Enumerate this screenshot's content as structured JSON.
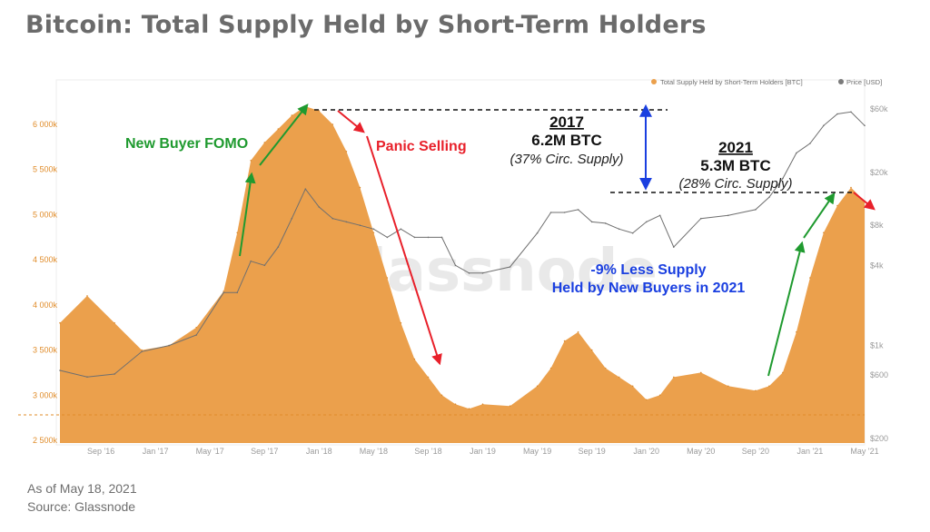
{
  "title": "Bitcoin: Total Supply Held by Short-Term Holders",
  "footer": {
    "date": "As of May 18, 2021",
    "source": "Source: Glassnode"
  },
  "watermark": "glassnode",
  "colors": {
    "supply": "#eba04c",
    "price": "#6f6f6f",
    "green": "#1f9a2f",
    "red": "#e8202a",
    "blue": "#1a3fe0"
  },
  "annotations": {
    "fomo": "New Buyer FOMO",
    "panic": "Panic Selling",
    "y2017": "2017",
    "y2017_btc": "6.2M BTC",
    "y2017_circ": "(37% Circ. Supply)",
    "y2021": "2021",
    "y2021_btc": "5.3M BTC",
    "y2021_circ": "(28% Circ. Supply)",
    "less_1": "-9% Less Supply",
    "less_2": "Held by New Buyers in 2021"
  },
  "chart_data": {
    "type": "area",
    "legend": [
      "Total Supply Held by Short-Term Holders [BTC]",
      "Price [USD]"
    ],
    "legend_position": "top-right",
    "x_ticks": [
      "Sep '16",
      "Jan '17",
      "May '17",
      "Sep '17",
      "Jan '18",
      "May '18",
      "Sep '18",
      "Jan '19",
      "May '19",
      "Sep '19",
      "Jan '20",
      "May '20",
      "Sep '20",
      "Jan '21",
      "May '21"
    ],
    "y_left_ticks": [
      "6 000k",
      "5 500k",
      "5 000k",
      "4 500k",
      "4 000k",
      "3 500k",
      "3 000k",
      "2 500k"
    ],
    "y_left_range": [
      2500000,
      6200000
    ],
    "y_right_ticks": [
      "$60k",
      "$20k",
      "$8k",
      "$4k",
      "$1k",
      "$600",
      "$200"
    ],
    "y_right_scale": "log",
    "series": [
      {
        "name": "Total Supply Held by Short-Term Holders [BTC]",
        "x": [
          "2016-06",
          "2016-08",
          "2016-10",
          "2016-12",
          "2017-02",
          "2017-04",
          "2017-06",
          "2017-07",
          "2017-08",
          "2017-09",
          "2017-10",
          "2017-11",
          "2017-12",
          "2018-01",
          "2018-02",
          "2018-03",
          "2018-04",
          "2018-05",
          "2018-06",
          "2018-07",
          "2018-08",
          "2018-09",
          "2018-10",
          "2018-11",
          "2018-12",
          "2019-01",
          "2019-03",
          "2019-05",
          "2019-06",
          "2019-07",
          "2019-08",
          "2019-09",
          "2019-10",
          "2019-11",
          "2019-12",
          "2020-01",
          "2020-02",
          "2020-03",
          "2020-05",
          "2020-07",
          "2020-09",
          "2020-10",
          "2020-11",
          "2020-12",
          "2021-01",
          "2021-02",
          "2021-03",
          "2021-04",
          "2021-05"
        ],
        "values": [
          3800000,
          4100000,
          3800000,
          3500000,
          3550000,
          3750000,
          4150000,
          4800000,
          5600000,
          5800000,
          5950000,
          6100000,
          6200000,
          6150000,
          6000000,
          5700000,
          5300000,
          4800000,
          4300000,
          3800000,
          3400000,
          3200000,
          3000000,
          2900000,
          2850000,
          2900000,
          2880000,
          3100000,
          3300000,
          3600000,
          3700000,
          3500000,
          3300000,
          3200000,
          3100000,
          2950000,
          3000000,
          3200000,
          3250000,
          3100000,
          3050000,
          3100000,
          3250000,
          3700000,
          4300000,
          4800000,
          5100000,
          5300000,
          5150000
        ]
      },
      {
        "name": "Price [USD]",
        "x": [
          "2016-06",
          "2016-08",
          "2016-10",
          "2016-12",
          "2017-02",
          "2017-04",
          "2017-06",
          "2017-07",
          "2017-08",
          "2017-09",
          "2017-10",
          "2017-11",
          "2017-12",
          "2018-01",
          "2018-02",
          "2018-03",
          "2018-04",
          "2018-05",
          "2018-06",
          "2018-07",
          "2018-08",
          "2018-09",
          "2018-10",
          "2018-11",
          "2018-12",
          "2019-01",
          "2019-03",
          "2019-05",
          "2019-06",
          "2019-07",
          "2019-08",
          "2019-09",
          "2019-10",
          "2019-11",
          "2019-12",
          "2020-01",
          "2020-02",
          "2020-03",
          "2020-05",
          "2020-07",
          "2020-09",
          "2020-10",
          "2020-11",
          "2020-12",
          "2021-01",
          "2021-02",
          "2021-03",
          "2021-04",
          "2021-05"
        ],
        "values": [
          650,
          580,
          610,
          900,
          1000,
          1200,
          2500,
          2500,
          4300,
          4000,
          5500,
          9000,
          15000,
          11000,
          9000,
          8500,
          8000,
          7500,
          6500,
          7500,
          6500,
          6500,
          6500,
          4000,
          3500,
          3500,
          3900,
          7000,
          10000,
          10000,
          10500,
          8500,
          8300,
          7500,
          7000,
          8500,
          9500,
          5500,
          9000,
          9500,
          10500,
          13000,
          18000,
          28000,
          33000,
          45000,
          55000,
          57000,
          45000
        ]
      }
    ]
  }
}
